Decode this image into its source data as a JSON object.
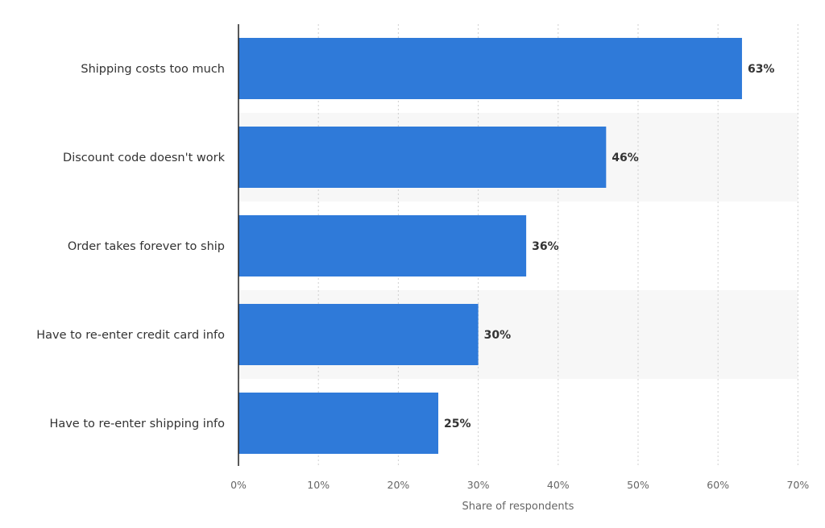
{
  "chart_data": {
    "type": "bar",
    "orientation": "horizontal",
    "categories": [
      "Shipping costs too much",
      "Discount code doesn't work",
      "Order takes forever to ship",
      "Have to re-enter credit card info",
      "Have to re-enter shipping info"
    ],
    "values": [
      63,
      46,
      36,
      30,
      25
    ],
    "value_labels": [
      "63%",
      "46%",
      "36%",
      "30%",
      "25%"
    ],
    "xlim": [
      0,
      70
    ],
    "xticks": [
      "0%",
      "10%",
      "20%",
      "30%",
      "40%",
      "50%",
      "60%",
      "70%"
    ],
    "xlabel": "Share of respondents",
    "grid": true,
    "colors": {
      "bar": "#2f7ad9",
      "band": "#f7f7f7",
      "grid": "#cfcfcf",
      "axis": "#222222"
    }
  }
}
